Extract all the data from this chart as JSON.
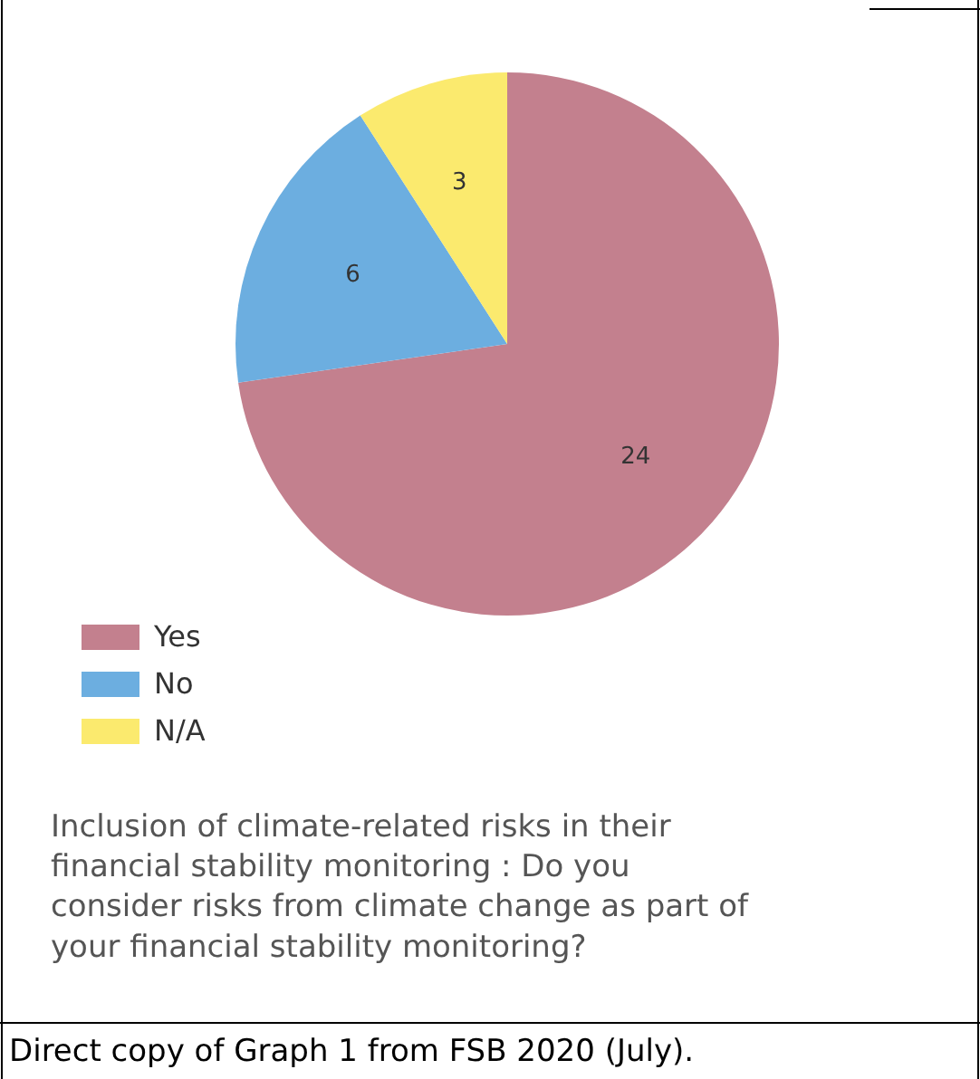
{
  "chart_data": {
    "type": "pie",
    "categories": [
      "Yes",
      "No",
      "N/A"
    ],
    "values": [
      24,
      6,
      3
    ],
    "colors": [
      "#c3808e",
      "#6caee0",
      "#fbea6e"
    ],
    "data_labels": true,
    "legend": "bottom left",
    "annotations": [
      "Inclusion of climate-related risks in their financial stability monitoring : Do you consider risks from climate change as part of your financial stability monitoring?",
      "Direct copy of Graph 1 from FSB 2020 (July)."
    ]
  }
}
